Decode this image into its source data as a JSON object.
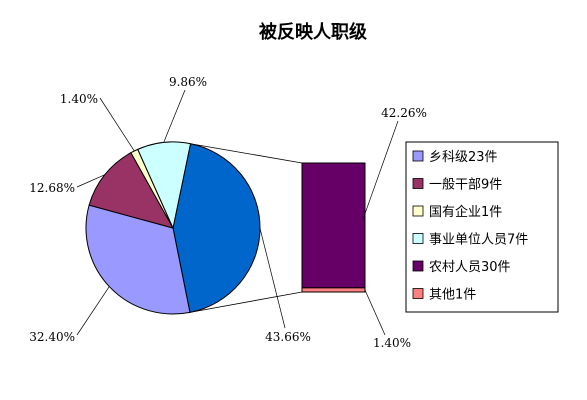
{
  "chart_data": {
    "type": "pie",
    "title": "被反映人职级",
    "slices": [
      {
        "name": "乡科级23件",
        "value": 32.4,
        "label": "32.40%",
        "color": "#9999FF"
      },
      {
        "name": "一般干部9件",
        "value": 12.68,
        "label": "12.68%",
        "color": "#993366"
      },
      {
        "name": "国有企业1件",
        "value": 1.4,
        "label": "1.40%",
        "color": "#FFFFCC"
      },
      {
        "name": "事业单位人员7件",
        "value": 9.86,
        "label": "9.86%",
        "color": "#CCFFFF"
      },
      {
        "name": "农村人员30件",
        "value": 42.26,
        "label": "42.26%",
        "color": "#660066"
      },
      {
        "name": "其他1件",
        "value": 1.4,
        "label": "1.40%",
        "color": "#FF8080"
      }
    ],
    "pie_slice_label": "43.66%",
    "pie_slice_value": 43.66,
    "pie_slice_color": "#0066CC",
    "legend_position": "right"
  }
}
